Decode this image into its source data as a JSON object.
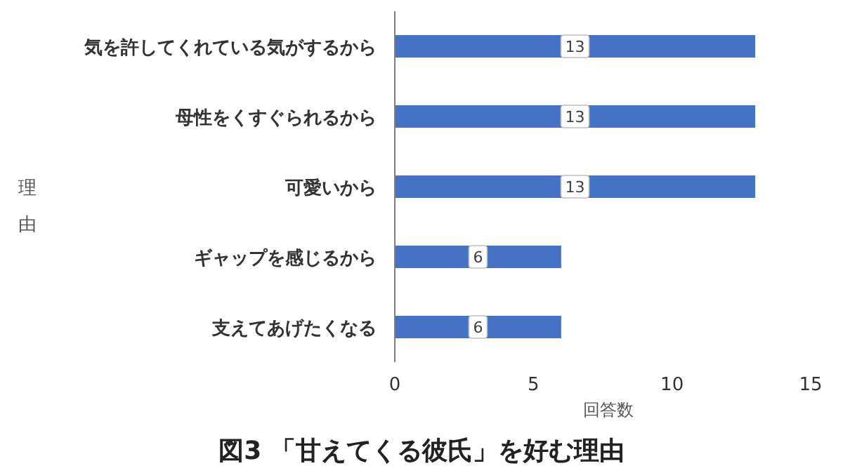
{
  "chart_data": {
    "type": "bar",
    "orientation": "horizontal",
    "title": "図3 「甘えてくる彼氏」を好む理由",
    "xlabel": "回答数",
    "ylabel": "理由",
    "categories": [
      "気を許してくれている気がするから",
      "母性をくすぐられるから",
      "可愛いから",
      "ギャップを感じるから",
      "支えてあげたくなる"
    ],
    "values": [
      13,
      13,
      13,
      6,
      6
    ],
    "color": "#4472c4",
    "xlim": [
      0,
      15
    ],
    "xticks": [
      0,
      5,
      10,
      15
    ],
    "data_labels": true
  }
}
